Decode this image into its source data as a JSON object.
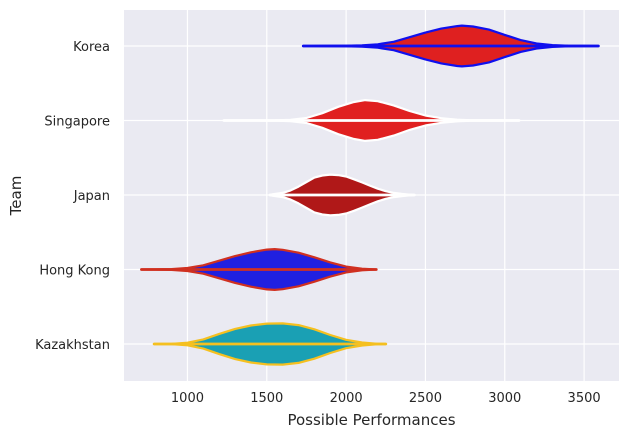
{
  "chart_data": {
    "type": "violin",
    "orientation": "horizontal",
    "title": "",
    "xlabel": "Possible Performances",
    "ylabel": "Team",
    "xlim": [
      600,
      3720
    ],
    "xticks": [
      1000,
      1500,
      2000,
      2500,
      3000,
      3500
    ],
    "grid": true,
    "legend": "none",
    "background": "#EAEAF2",
    "grid_color": "#FFFFFF",
    "series": [
      {
        "team": "Korea",
        "fill": "#DF2020",
        "edge": "#1010EE",
        "range": [
          1730,
          3590
        ],
        "profile": [
          [
            1730,
            0.0
          ],
          [
            1780,
            0.002
          ],
          [
            1850,
            0.004
          ],
          [
            2000,
            0.012
          ],
          [
            2100,
            0.03
          ],
          [
            2200,
            0.08
          ],
          [
            2300,
            0.2
          ],
          [
            2400,
            0.42
          ],
          [
            2500,
            0.64
          ],
          [
            2600,
            0.83
          ],
          [
            2700,
            0.95
          ],
          [
            2730,
            0.97
          ],
          [
            2800,
            0.93
          ],
          [
            2900,
            0.78
          ],
          [
            3000,
            0.53
          ],
          [
            3100,
            0.28
          ],
          [
            3200,
            0.12
          ],
          [
            3300,
            0.045
          ],
          [
            3400,
            0.015
          ],
          [
            3500,
            0.004
          ],
          [
            3590,
            0.0
          ]
        ]
      },
      {
        "team": "Singapore",
        "fill": "#E02020",
        "edge": "#FFFFFF",
        "range": [
          1230,
          3090
        ],
        "profile": [
          [
            1230,
            0.0
          ],
          [
            1400,
            0.002
          ],
          [
            1550,
            0.006
          ],
          [
            1650,
            0.03
          ],
          [
            1750,
            0.12
          ],
          [
            1850,
            0.35
          ],
          [
            1950,
            0.65
          ],
          [
            2050,
            0.88
          ],
          [
            2120,
            0.97
          ],
          [
            2200,
            0.92
          ],
          [
            2300,
            0.72
          ],
          [
            2400,
            0.45
          ],
          [
            2500,
            0.24
          ],
          [
            2600,
            0.11
          ],
          [
            2700,
            0.04
          ],
          [
            2800,
            0.01
          ],
          [
            2900,
            0.004
          ],
          [
            3090,
            0.0
          ]
        ]
      },
      {
        "team": "Japan",
        "fill": "#B01818",
        "edge": "#FFFFFF",
        "range": [
          1520,
          2430
        ],
        "profile": [
          [
            1520,
            0.0
          ],
          [
            1540,
            0.04
          ],
          [
            1600,
            0.1
          ],
          [
            1650,
            0.22
          ],
          [
            1700,
            0.4
          ],
          [
            1750,
            0.62
          ],
          [
            1800,
            0.83
          ],
          [
            1850,
            0.93
          ],
          [
            1900,
            0.97
          ],
          [
            1950,
            0.95
          ],
          [
            2000,
            0.88
          ],
          [
            2050,
            0.75
          ],
          [
            2100,
            0.6
          ],
          [
            2150,
            0.45
          ],
          [
            2200,
            0.3
          ],
          [
            2250,
            0.18
          ],
          [
            2300,
            0.1
          ],
          [
            2350,
            0.05
          ],
          [
            2400,
            0.015
          ],
          [
            2430,
            0.0
          ]
        ]
      },
      {
        "team": "Hong Kong",
        "fill": "#2020E0",
        "edge": "#D03020",
        "range": [
          710,
          2190
        ],
        "profile": [
          [
            710,
            0.0
          ],
          [
            800,
            0.005
          ],
          [
            900,
            0.02
          ],
          [
            1000,
            0.07
          ],
          [
            1100,
            0.2
          ],
          [
            1200,
            0.42
          ],
          [
            1300,
            0.64
          ],
          [
            1400,
            0.82
          ],
          [
            1500,
            0.95
          ],
          [
            1550,
            0.97
          ],
          [
            1600,
            0.94
          ],
          [
            1700,
            0.8
          ],
          [
            1800,
            0.58
          ],
          [
            1900,
            0.34
          ],
          [
            2000,
            0.14
          ],
          [
            2100,
            0.04
          ],
          [
            2190,
            0.0
          ]
        ]
      },
      {
        "team": "Kazakhstan",
        "fill": "#1AA0B4",
        "edge": "#F5C020",
        "range": [
          790,
          2250
        ],
        "profile": [
          [
            790,
            0.0
          ],
          [
            900,
            0.01
          ],
          [
            1000,
            0.06
          ],
          [
            1100,
            0.22
          ],
          [
            1200,
            0.48
          ],
          [
            1300,
            0.72
          ],
          [
            1400,
            0.88
          ],
          [
            1500,
            0.97
          ],
          [
            1600,
            0.98
          ],
          [
            1700,
            0.9
          ],
          [
            1800,
            0.7
          ],
          [
            1900,
            0.43
          ],
          [
            2000,
            0.2
          ],
          [
            2100,
            0.07
          ],
          [
            2200,
            0.01
          ],
          [
            2250,
            0.0
          ]
        ]
      }
    ]
  }
}
